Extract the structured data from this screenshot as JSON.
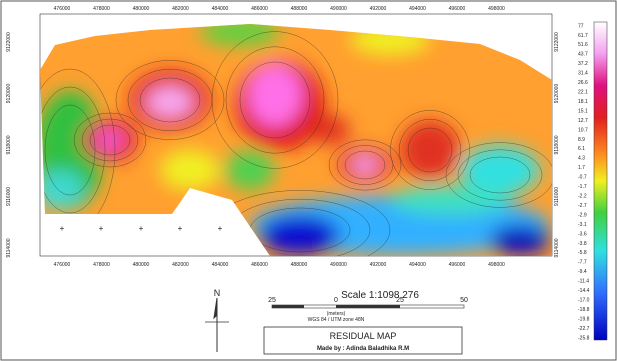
{
  "map": {
    "x_labels": [
      476000,
      478000,
      480000,
      482000,
      484000,
      486000,
      488000,
      490000,
      492000,
      494000,
      496000,
      498000
    ],
    "y_labels": [
      9122000,
      9120000,
      9118000,
      9116000,
      9114000
    ]
  },
  "legend": {
    "labels": [
      "77",
      "61.7",
      "51.6",
      "43.7",
      "37.2",
      "31.4",
      "26.6",
      "22.1",
      "18.1",
      "15.1",
      "12.7",
      "10.7",
      "8.9",
      "6.1",
      "4.3",
      "1.7",
      "-0.7",
      "-1.7",
      "-2.2",
      "-2.7",
      "-2.9",
      "-3.1",
      "-3.6",
      "-3.8",
      "-5.8",
      "-7.7",
      "-9.4",
      "-11.4",
      "-14.4",
      "-17.0",
      "-18.8",
      "-19.8",
      "-22.7",
      "-25.8"
    ]
  },
  "north": "N",
  "scale": {
    "title": "Scale 1:1098.276",
    "ticks": [
      "25",
      "0",
      "25",
      "50"
    ],
    "unit": "(meters)",
    "crs": "WGS 84 / UTM zone 48N"
  },
  "title_box": {
    "title": "RESIDUAL MAP",
    "author": "Made by : Adinda Baladhika R.M"
  }
}
